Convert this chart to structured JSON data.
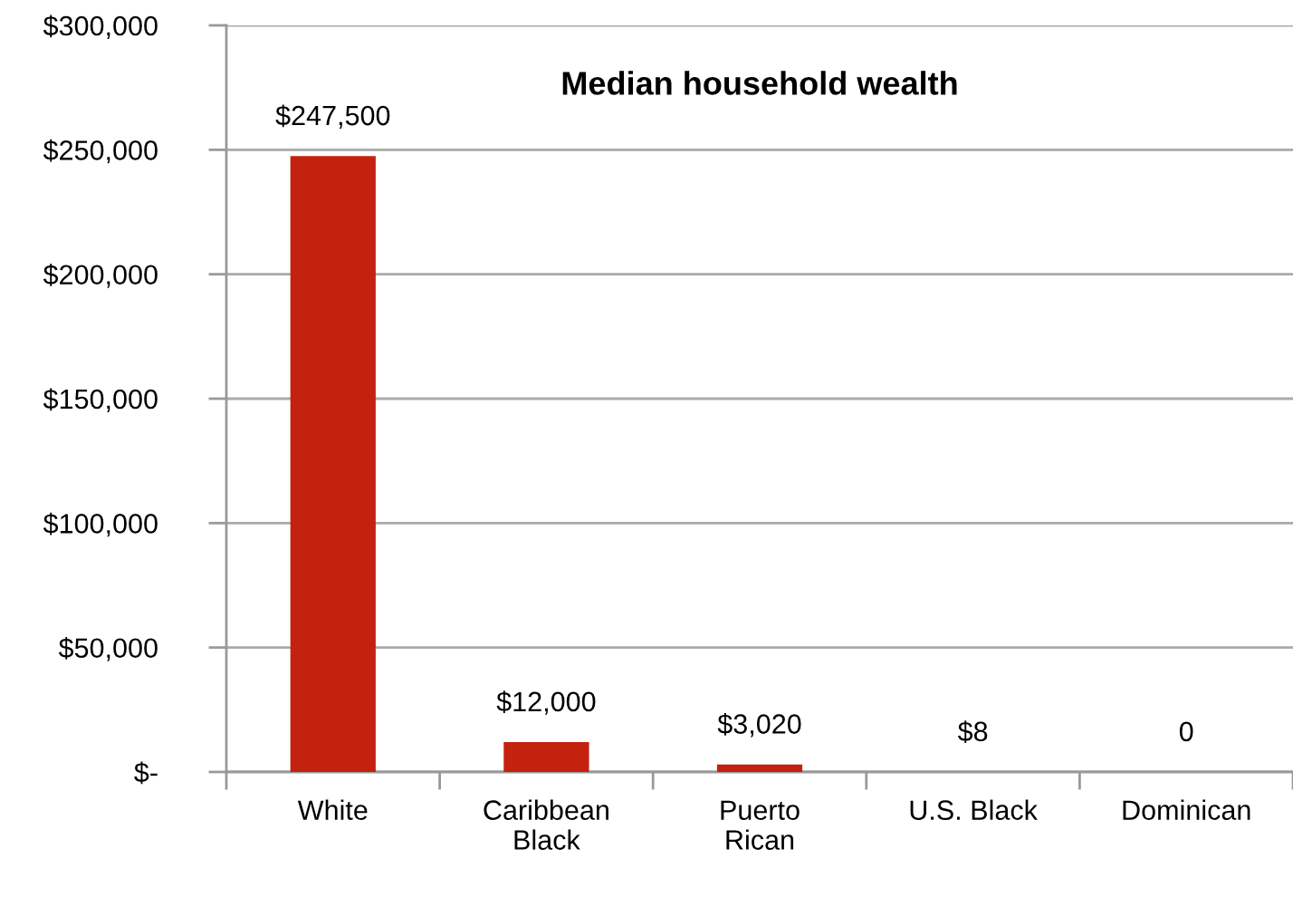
{
  "chart_data": {
    "type": "bar",
    "title": "Median household wealth",
    "categories": [
      "White",
      "Caribbean Black",
      "Puerto Rican",
      "U.S. Black",
      "Dominican"
    ],
    "values": [
      247500,
      12000,
      3020,
      8,
      0
    ],
    "value_labels": [
      "$247,500",
      "$12,000",
      "$3,020",
      "$8",
      "0"
    ],
    "color": "#c4220e",
    "ylim": [
      0,
      300000
    ],
    "yticks": [
      {
        "value": 0,
        "label": "$-"
      },
      {
        "value": 50000,
        "label": "$50,000"
      },
      {
        "value": 100000,
        "label": "$100,000"
      },
      {
        "value": 150000,
        "label": "$150,000"
      },
      {
        "value": 200000,
        "label": "$200,000"
      },
      {
        "value": 250000,
        "label": "$250,000"
      },
      {
        "value": 300000,
        "label": "$300,000"
      }
    ],
    "grid": "y",
    "legend": false
  }
}
